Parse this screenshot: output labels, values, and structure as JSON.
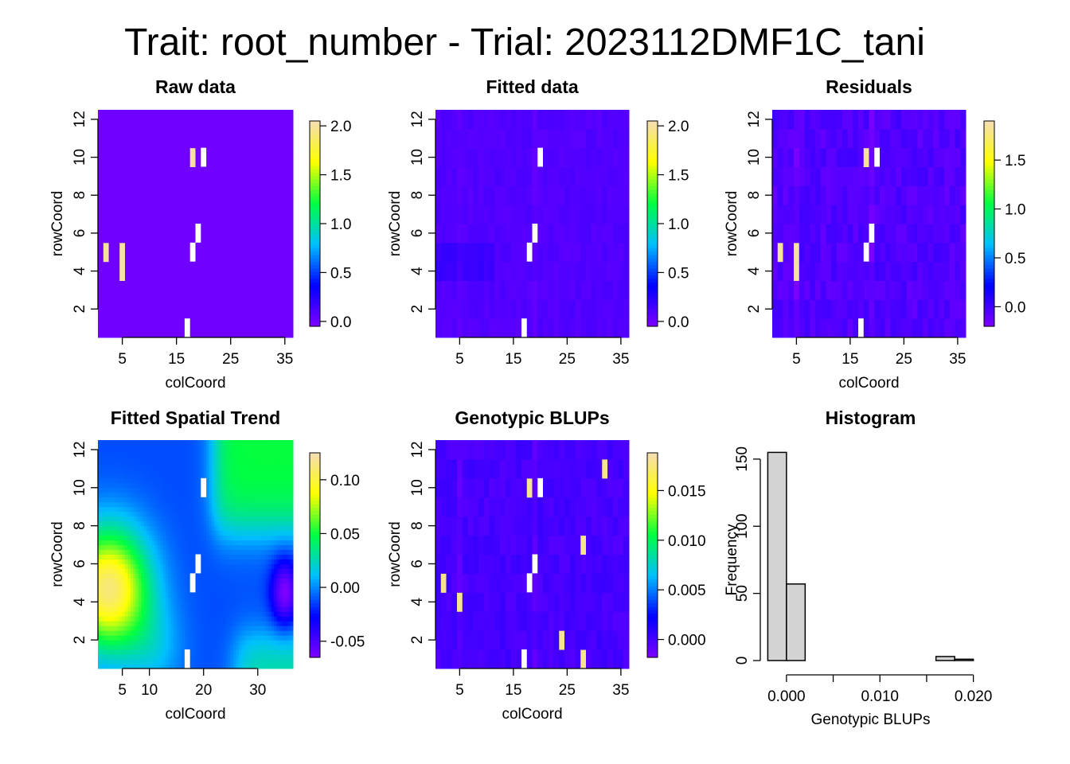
{
  "figure": {
    "title": "Trait: root_number - Trial: 2023112DMF1C_tani"
  },
  "chart_data": [
    {
      "type": "heatmap",
      "title": "Raw data",
      "xlabel": "colCoord",
      "ylabel": "rowCoord",
      "xlim": [
        0.5,
        36.5
      ],
      "ylim": [
        0.5,
        12.5
      ],
      "x_ticks": [
        5,
        15,
        25,
        35
      ],
      "y_ticks": [
        2,
        4,
        6,
        8,
        10,
        12
      ],
      "colorbar": {
        "range": [
          -0.05,
          2.05
        ],
        "ticks": [
          0.0,
          0.5,
          1.0,
          1.5,
          2.0
        ],
        "tick_labels": [
          "0.0",
          "0.5",
          "1.0",
          "1.5",
          "2.0"
        ]
      },
      "base_value": 0.0,
      "cells": [
        {
          "x": 18,
          "y": 10,
          "value": 2.0
        },
        {
          "x": 2,
          "y": 5,
          "value": 2.0
        },
        {
          "x": 5,
          "y": 4,
          "value": 2.0
        },
        {
          "x": 5,
          "y": 5,
          "value": 2.0
        }
      ],
      "missing": [
        [
          20,
          10
        ],
        [
          19,
          6
        ],
        [
          18,
          5
        ],
        [
          17,
          1
        ]
      ]
    },
    {
      "type": "heatmap",
      "title": "Fitted data",
      "xlabel": "",
      "ylabel": "rowCoord",
      "xlim": [
        0.5,
        36.5
      ],
      "ylim": [
        0.5,
        12.5
      ],
      "x_ticks": [
        5,
        15,
        25,
        35
      ],
      "y_ticks": [
        2,
        4,
        6,
        8,
        10,
        12
      ],
      "colorbar": {
        "range": [
          -0.05,
          2.05
        ],
        "ticks": [
          0.0,
          0.5,
          1.0,
          1.5,
          2.0
        ],
        "tick_labels": [
          "0.0",
          "0.5",
          "1.0",
          "1.5",
          "2.0"
        ]
      },
      "base_value": 0.1,
      "missing": [
        [
          20,
          10
        ],
        [
          19,
          6
        ],
        [
          18,
          5
        ],
        [
          17,
          1
        ]
      ]
    },
    {
      "type": "heatmap",
      "title": "Residuals",
      "xlabel": "colCoord",
      "ylabel": "rowCoord",
      "xlim": [
        0.5,
        36.5
      ],
      "ylim": [
        0.5,
        12.5
      ],
      "x_ticks": [
        5,
        15,
        25,
        35
      ],
      "y_ticks": [
        2,
        4,
        6,
        8,
        10,
        12
      ],
      "colorbar": {
        "range": [
          -0.2,
          1.9
        ],
        "ticks": [
          0.0,
          0.5,
          1.0,
          1.5
        ],
        "tick_labels": [
          "0.0",
          "0.5",
          "1.0",
          "1.5"
        ]
      },
      "base_value": -0.05,
      "cells": [
        {
          "x": 18,
          "y": 10,
          "value": 1.85
        },
        {
          "x": 2,
          "y": 5,
          "value": 1.85
        },
        {
          "x": 5,
          "y": 4,
          "value": 1.85
        },
        {
          "x": 5,
          "y": 5,
          "value": 1.85
        }
      ],
      "missing": [
        [
          20,
          10
        ],
        [
          19,
          6
        ],
        [
          18,
          5
        ],
        [
          17,
          1
        ]
      ]
    },
    {
      "type": "heatmap",
      "title": "Fitted Spatial Trend",
      "xlabel": "colCoord",
      "ylabel": "rowCoord",
      "xlim": [
        0.5,
        36.5
      ],
      "ylim": [
        0.5,
        12.5
      ],
      "x_ticks": [
        5,
        10,
        20,
        30
      ],
      "y_ticks": [
        2,
        4,
        6,
        8,
        10,
        12
      ],
      "colorbar": {
        "range": [
          -0.065,
          0.125
        ],
        "ticks": [
          -0.05,
          0.0,
          0.05,
          0.1
        ],
        "tick_labels": [
          "-0.05",
          "0.00",
          "0.05",
          "0.10"
        ]
      },
      "missing": [
        [
          20,
          10
        ],
        [
          19,
          6
        ],
        [
          18,
          5
        ],
        [
          17,
          1
        ]
      ]
    },
    {
      "type": "heatmap",
      "title": "Genotypic BLUPs",
      "xlabel": "colCoord",
      "ylabel": "rowCoord",
      "xlim": [
        0.5,
        36.5
      ],
      "ylim": [
        0.5,
        12.5
      ],
      "x_ticks": [
        5,
        15,
        25,
        35
      ],
      "y_ticks": [
        2,
        4,
        6,
        8,
        10,
        12
      ],
      "colorbar": {
        "range": [
          -0.0018,
          0.0188
        ],
        "ticks": [
          0.0,
          0.005,
          0.01,
          0.015
        ],
        "tick_labels": [
          "0.000",
          "0.005",
          "0.010",
          "0.015"
        ]
      },
      "cells": [
        {
          "x": 18,
          "y": 10,
          "value": 0.018
        },
        {
          "x": 2,
          "y": 5,
          "value": 0.018
        },
        {
          "x": 5,
          "y": 4,
          "value": 0.018
        },
        {
          "x": 32,
          "y": 11,
          "value": 0.018
        },
        {
          "x": 28,
          "y": 7,
          "value": 0.018
        },
        {
          "x": 24,
          "y": 2,
          "value": 0.018
        },
        {
          "x": 28,
          "y": 1,
          "value": 0.018
        }
      ],
      "missing": [
        [
          20,
          10
        ],
        [
          19,
          6
        ],
        [
          18,
          5
        ],
        [
          17,
          1
        ]
      ]
    },
    {
      "type": "bar",
      "subtype": "histogram",
      "title": "Histogram",
      "xlabel": "Genotypic BLUPs",
      "ylabel": "Frequency",
      "bin_edges": [
        -0.002,
        0.0,
        0.002,
        0.004,
        0.006,
        0.008,
        0.01,
        0.012,
        0.014,
        0.016,
        0.018,
        0.02
      ],
      "values": [
        155,
        57,
        0,
        0,
        0,
        0,
        0,
        0,
        0,
        3,
        1
      ],
      "xlim": [
        -0.002,
        0.02
      ],
      "ylim": [
        0,
        155
      ],
      "x_ticks": [
        0.0,
        0.01,
        0.02
      ],
      "x_tick_labels": [
        "0.000",
        "0.010",
        "0.020"
      ],
      "y_ticks": [
        0,
        50,
        100,
        150
      ],
      "bar_color": "#d3d3d3"
    }
  ],
  "colors": {
    "missing": "#ffffff",
    "palette": [
      "#7f00ff",
      "#0000ff",
      "#00bfff",
      "#00ff40",
      "#ffff00",
      "#f5deb3"
    ]
  }
}
